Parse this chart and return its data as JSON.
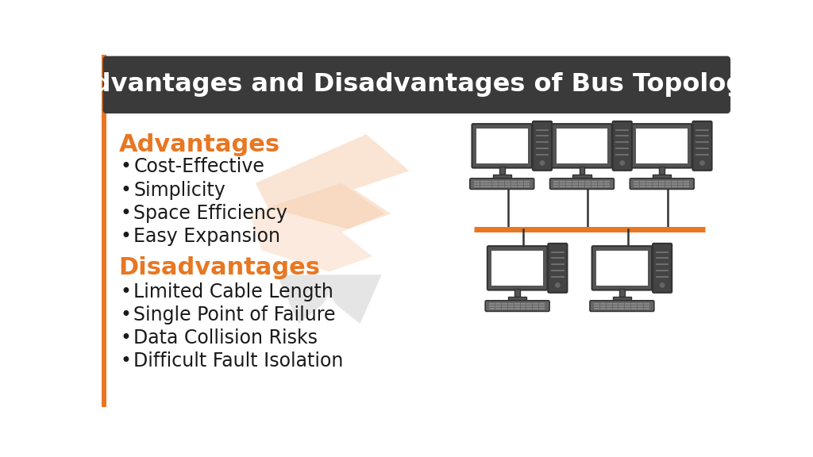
{
  "title": "Advantages and Disadvantages of Bus Topology",
  "title_bg_color": "#3a3a3a",
  "title_text_color": "#ffffff",
  "bg_color": "#ffffff",
  "orange_color": "#e87722",
  "dark_color": "#1a1a1a",
  "advantages_label": "Advantages",
  "disadvantages_label": "Disadvantages",
  "advantages": [
    "Cost-Effective",
    "Simplicity",
    "Space Efficiency",
    "Easy Expansion"
  ],
  "disadvantages": [
    "Limited Cable Length",
    "Single Point of Failure",
    "Data Collision Risks",
    "Difficult Fault Isolation"
  ],
  "watermark_orange": "#f5c5a0",
  "watermark_gray": "#d0d0d0",
  "bus_line_color": "#e87722",
  "comp_body": "#555555",
  "comp_screen": "#ffffff",
  "comp_outline": "#333333"
}
